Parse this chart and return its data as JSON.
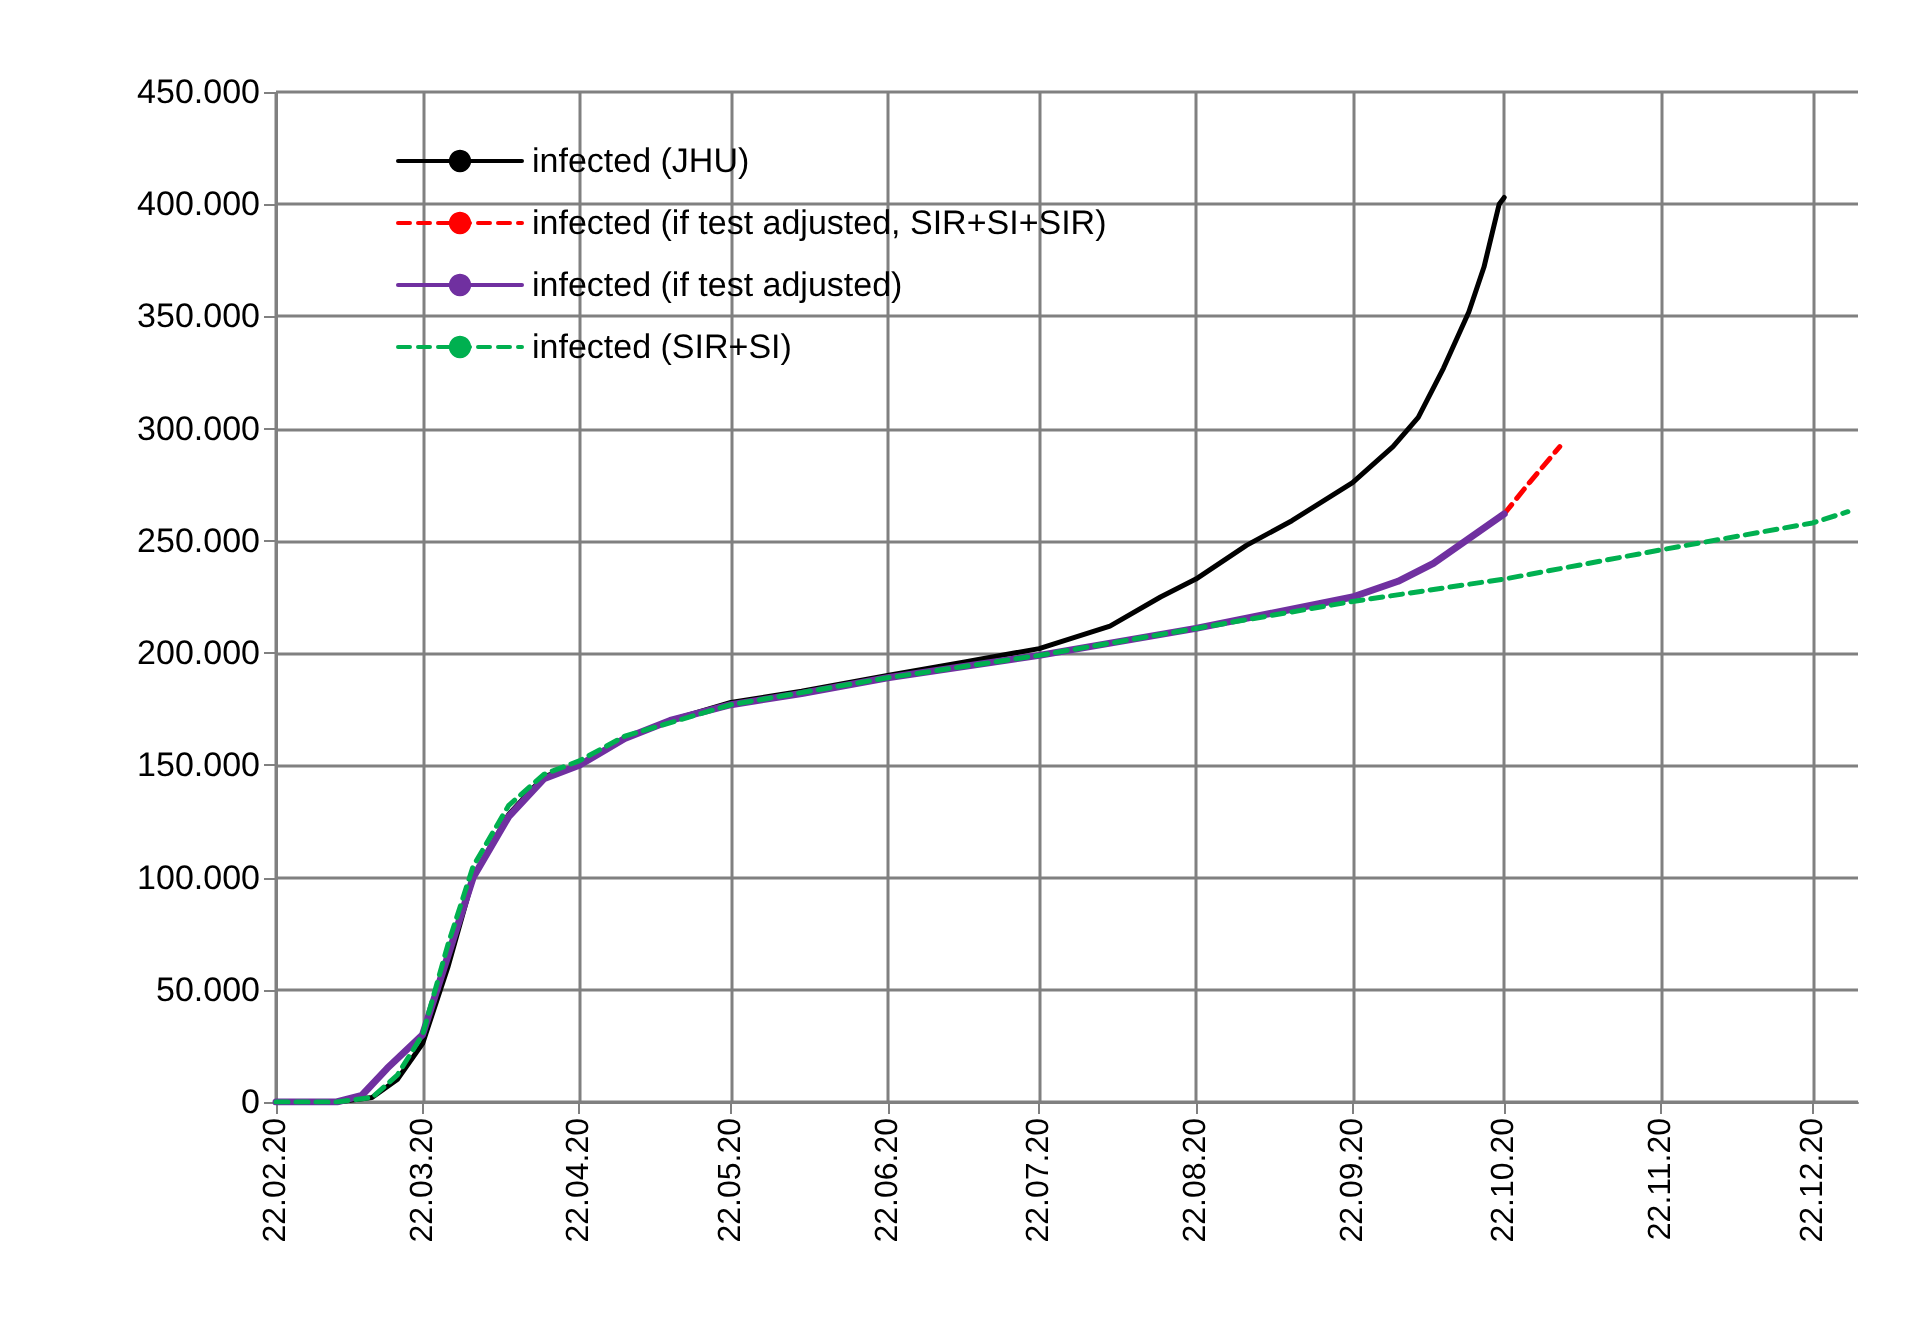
{
  "chart_data": {
    "type": "line",
    "xlim": [
      "2020-02-22",
      "2020-12-31"
    ],
    "ylim": [
      0,
      450000
    ],
    "xticks": [
      {
        "value": "2020-02-22",
        "label": "22.02.20"
      },
      {
        "value": "2020-03-22",
        "label": "22.03.20"
      },
      {
        "value": "2020-04-22",
        "label": "22.04.20"
      },
      {
        "value": "2020-05-22",
        "label": "22.05.20"
      },
      {
        "value": "2020-06-22",
        "label": "22.06.20"
      },
      {
        "value": "2020-07-22",
        "label": "22.07.20"
      },
      {
        "value": "2020-08-22",
        "label": "22.08.20"
      },
      {
        "value": "2020-09-22",
        "label": "22.09.20"
      },
      {
        "value": "2020-10-22",
        "label": "22.10.20"
      },
      {
        "value": "2020-11-22",
        "label": "22.11.20"
      },
      {
        "value": "2020-12-22",
        "label": "22.12.20"
      }
    ],
    "yticks": [
      {
        "value": 0,
        "label": "0"
      },
      {
        "value": 50000,
        "label": "50.000"
      },
      {
        "value": 100000,
        "label": "100.000"
      },
      {
        "value": 150000,
        "label": "150.000"
      },
      {
        "value": 200000,
        "label": "200.000"
      },
      {
        "value": 250000,
        "label": "250.000"
      },
      {
        "value": 300000,
        "label": "300.000"
      },
      {
        "value": 350000,
        "label": "350.000"
      },
      {
        "value": 400000,
        "label": "400.000"
      },
      {
        "value": 450000,
        "label": "450.000"
      }
    ],
    "grid": true,
    "legend": "top left",
    "marker": "none",
    "series": [
      {
        "name": "infected (JHU)",
        "color": "#000000",
        "line_style": "solid",
        "x": [
          "2020-02-22",
          "2020-03-05",
          "2020-03-12",
          "2020-03-17",
          "2020-03-22",
          "2020-03-27",
          "2020-04-01",
          "2020-04-08",
          "2020-04-15",
          "2020-04-22",
          "2020-05-01",
          "2020-05-10",
          "2020-05-22",
          "2020-06-05",
          "2020-06-22",
          "2020-07-07",
          "2020-07-22",
          "2020-08-05",
          "2020-08-15",
          "2020-08-22",
          "2020-09-01",
          "2020-09-10",
          "2020-09-22",
          "2020-09-30",
          "2020-10-05",
          "2020-10-10",
          "2020-10-15",
          "2020-10-18",
          "2020-10-21",
          "2020-10-22"
        ],
        "values": [
          0,
          0,
          2000,
          10000,
          26000,
          60000,
          100000,
          128000,
          145000,
          150000,
          162000,
          170000,
          178000,
          183000,
          190000,
          196000,
          202000,
          212000,
          225000,
          233000,
          248000,
          259000,
          276000,
          292000,
          305000,
          327000,
          352000,
          372000,
          400000,
          403000
        ]
      },
      {
        "name": "infected (if test adjusted, SIR+SI+SIR)",
        "color": "#ff0000",
        "line_style": "dashed",
        "x": [
          "2020-10-22",
          "2020-10-27",
          "2020-11-02"
        ],
        "values": [
          262000,
          276000,
          292000
        ]
      },
      {
        "name": "infected (if test adjusted)",
        "color": "#7030a0",
        "line_style": "solid",
        "x": [
          "2020-02-22",
          "2020-03-05",
          "2020-03-10",
          "2020-03-15",
          "2020-03-22",
          "2020-03-27",
          "2020-04-01",
          "2020-04-08",
          "2020-04-15",
          "2020-04-22",
          "2020-05-01",
          "2020-05-10",
          "2020-05-22",
          "2020-06-05",
          "2020-06-22",
          "2020-07-22",
          "2020-08-22",
          "2020-09-22",
          "2020-10-01",
          "2020-10-08",
          "2020-10-15",
          "2020-10-22"
        ],
        "values": [
          0,
          0,
          3000,
          15000,
          30000,
          65000,
          100000,
          127000,
          144000,
          150000,
          162000,
          170000,
          177000,
          182000,
          189000,
          199000,
          211000,
          225000,
          232000,
          240000,
          251000,
          262000
        ]
      },
      {
        "name": "infected (SIR+SI)",
        "color": "#00b050",
        "line_style": "dashed",
        "x": [
          "2020-02-22",
          "2020-03-05",
          "2020-03-12",
          "2020-03-17",
          "2020-03-22",
          "2020-03-27",
          "2020-04-01",
          "2020-04-08",
          "2020-04-15",
          "2020-04-22",
          "2020-05-01",
          "2020-05-22",
          "2020-06-22",
          "2020-07-22",
          "2020-08-22",
          "2020-09-22",
          "2020-10-22",
          "2020-11-22",
          "2020-12-22",
          "2020-12-29"
        ],
        "values": [
          0,
          0,
          2000,
          12000,
          30000,
          70000,
          105000,
          132000,
          146000,
          152000,
          163000,
          177000,
          189000,
          199000,
          211000,
          223000,
          233000,
          246000,
          258000,
          263000
        ]
      }
    ]
  }
}
